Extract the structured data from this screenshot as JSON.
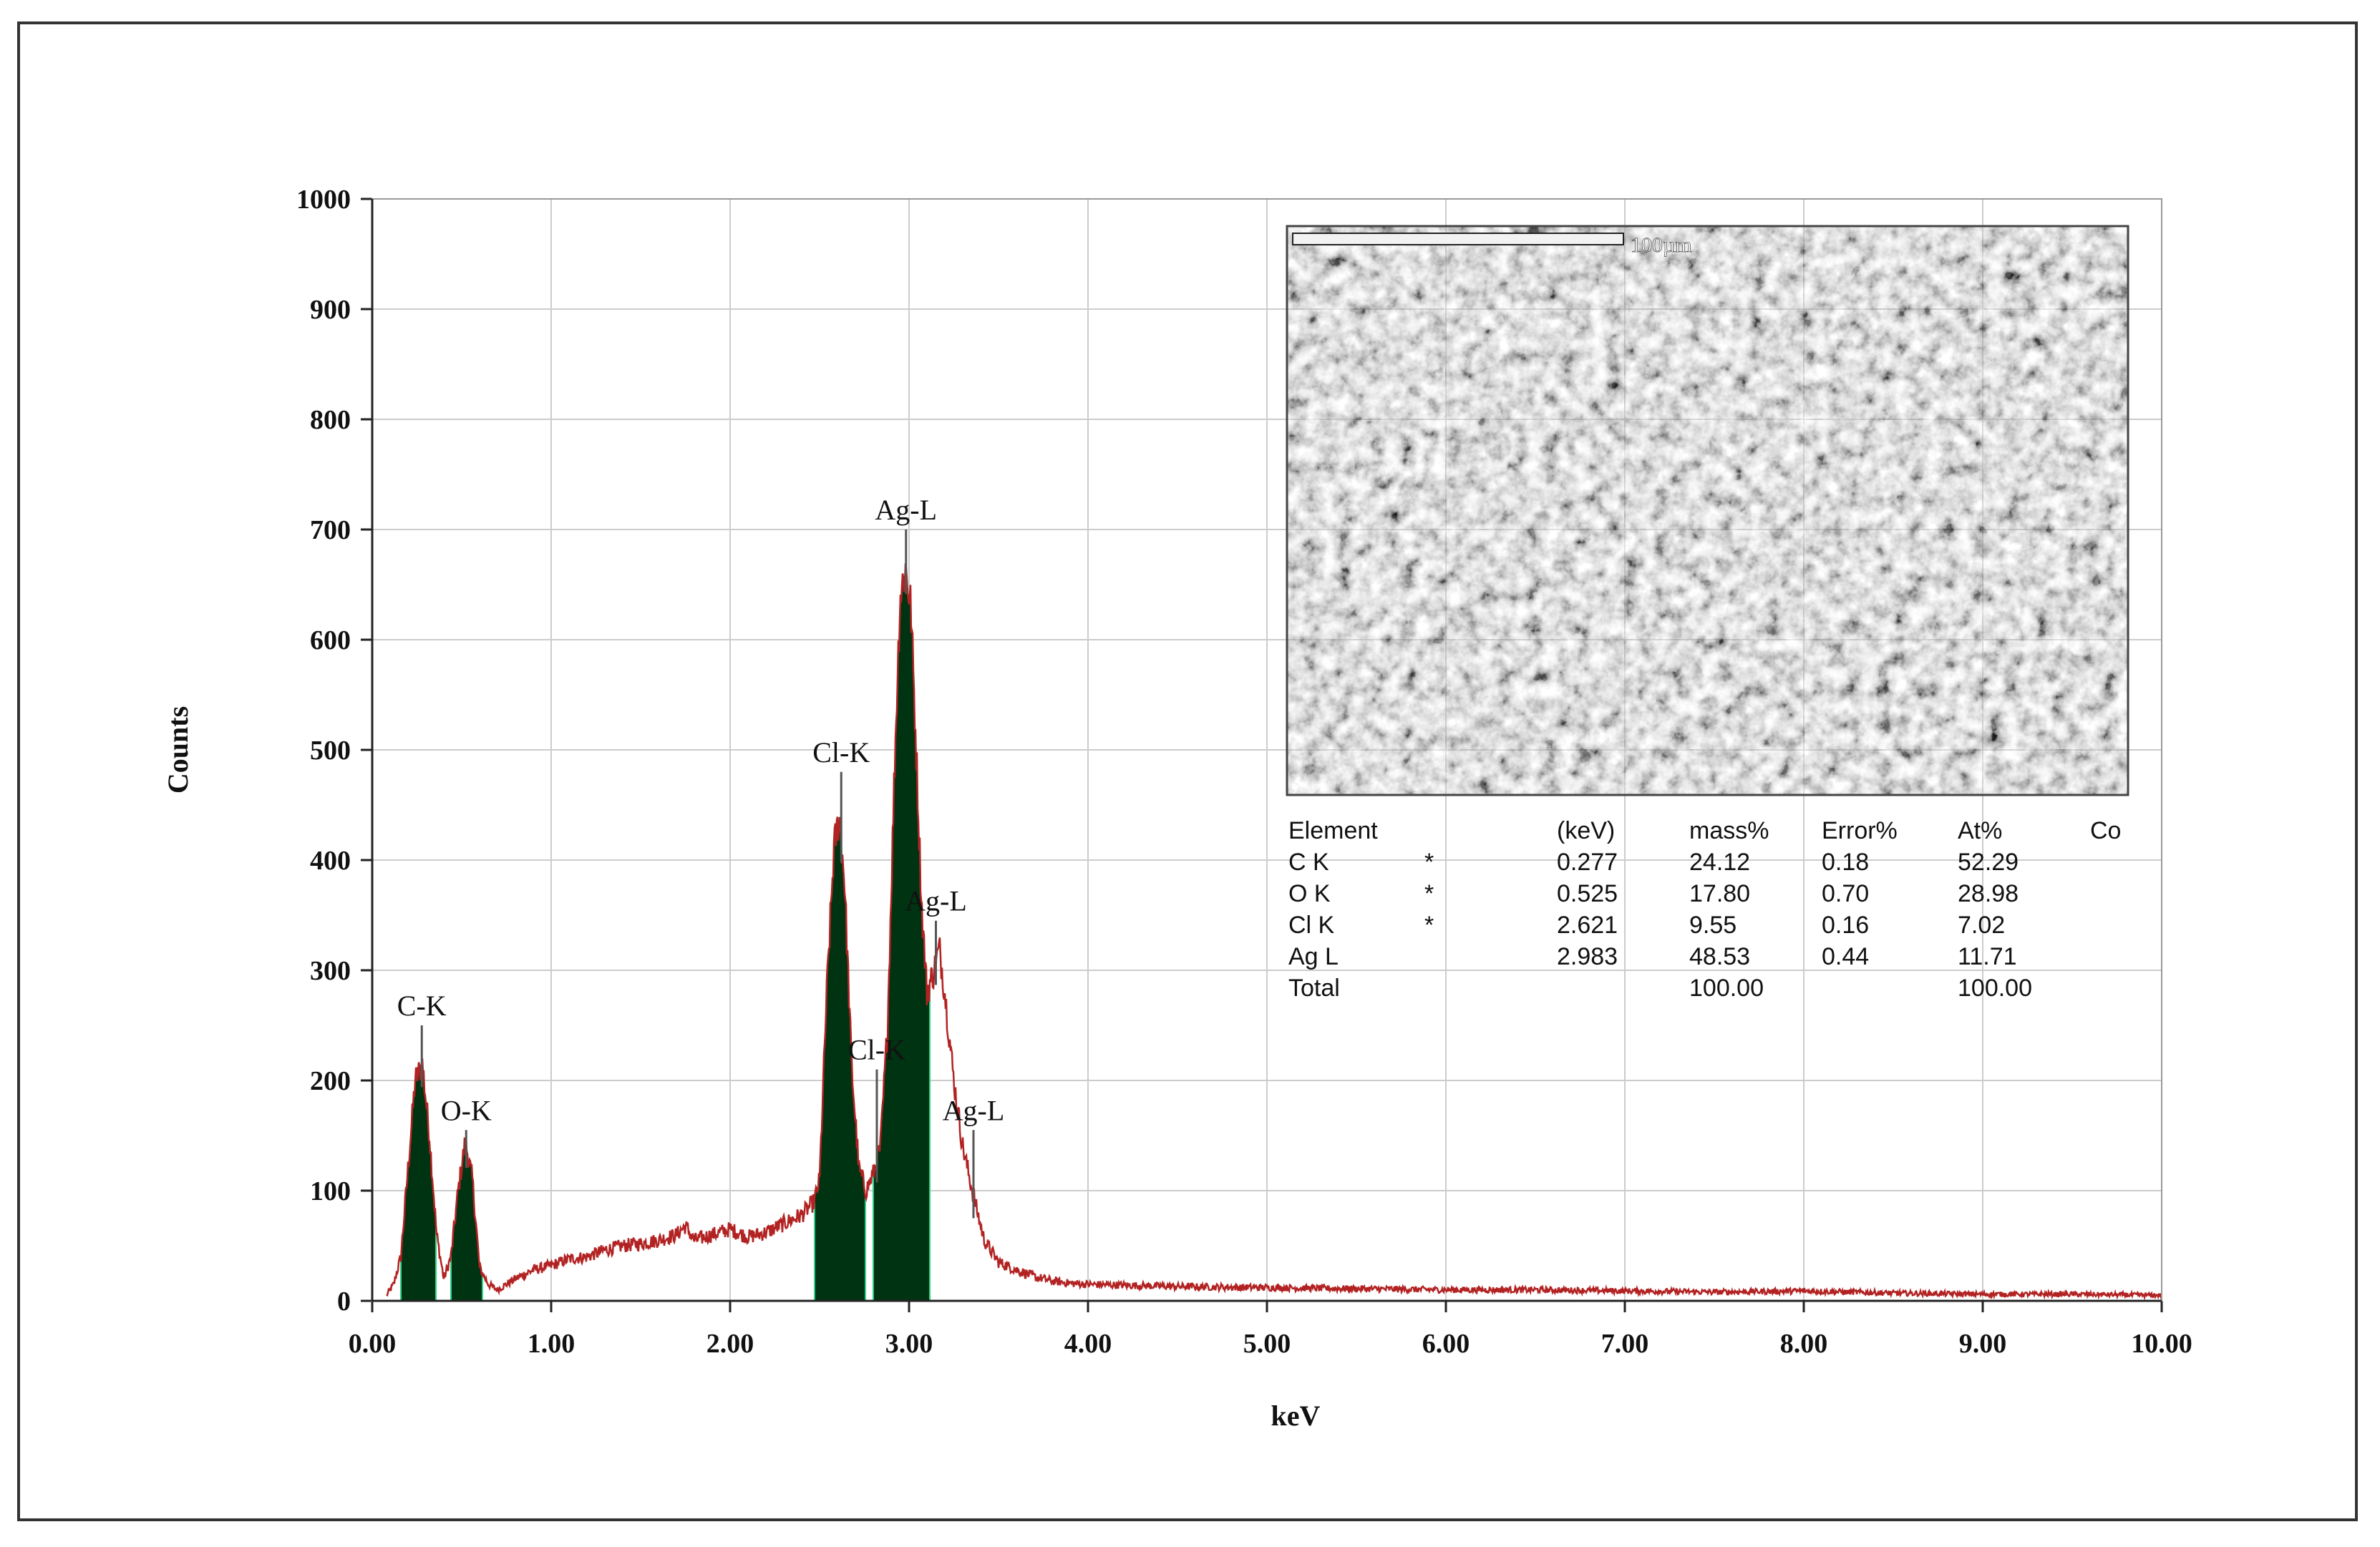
{
  "chart_data": {
    "type": "area",
    "title": "",
    "xlabel": "keV",
    "ylabel": "Counts",
    "xlim": [
      0,
      10
    ],
    "ylim": [
      0,
      1000
    ],
    "x_ticks": [
      "0.00",
      "1.00",
      "2.00",
      "3.00",
      "4.00",
      "5.00",
      "6.00",
      "7.00",
      "8.00",
      "9.00",
      "10.00"
    ],
    "y_ticks": [
      "0",
      "100",
      "200",
      "300",
      "400",
      "500",
      "600",
      "700",
      "800",
      "900",
      "1000"
    ],
    "grid": true,
    "colors": {
      "spectrum_line": "#b22222",
      "peak_fill": "#003311",
      "grid": "#cccccc"
    },
    "spectrum": {
      "x": [
        0.08,
        0.12,
        0.16,
        0.2,
        0.24,
        0.28,
        0.32,
        0.36,
        0.4,
        0.44,
        0.48,
        0.52,
        0.56,
        0.6,
        0.65,
        0.7,
        0.8,
        0.9,
        1.0,
        1.1,
        1.2,
        1.3,
        1.4,
        1.5,
        1.6,
        1.7,
        1.75,
        1.8,
        1.9,
        2.0,
        2.1,
        2.2,
        2.3,
        2.4,
        2.47,
        2.5,
        2.54,
        2.58,
        2.61,
        2.64,
        2.68,
        2.72,
        2.76,
        2.8,
        2.84,
        2.88,
        2.92,
        2.95,
        2.98,
        3.01,
        3.04,
        3.07,
        3.1,
        3.14,
        3.17,
        3.2,
        3.25,
        3.3,
        3.36,
        3.42,
        3.5,
        3.6,
        3.7,
        3.8,
        3.9,
        4.0,
        4.5,
        5.0,
        5.5,
        6.0,
        6.5,
        7.0,
        7.5,
        8.0,
        8.5,
        9.0,
        9.5,
        10.0
      ],
      "y": [
        5,
        15,
        40,
        120,
        200,
        215,
        150,
        60,
        20,
        40,
        100,
        145,
        110,
        30,
        15,
        10,
        20,
        28,
        32,
        38,
        40,
        46,
        50,
        52,
        55,
        60,
        68,
        55,
        60,
        65,
        58,
        62,
        70,
        78,
        90,
        110,
        280,
        410,
        440,
        380,
        210,
        120,
        100,
        115,
        140,
        250,
        490,
        640,
        665,
        630,
        500,
        360,
        280,
        300,
        320,
        280,
        200,
        140,
        95,
        55,
        35,
        28,
        22,
        18,
        16,
        15,
        13,
        12,
        11,
        10,
        10,
        9,
        8,
        9,
        7,
        6,
        6,
        5
      ]
    },
    "filled_peaks": [
      {
        "label": "C-K",
        "x_range": [
          0.16,
          0.36
        ]
      },
      {
        "label": "O-K",
        "x_range": [
          0.44,
          0.62
        ]
      },
      {
        "label": "Cl-K",
        "x_range": [
          2.47,
          2.76
        ]
      },
      {
        "label": "Ag-L",
        "x_range": [
          2.8,
          3.12
        ]
      }
    ],
    "annotations": [
      {
        "text": "C-K",
        "x": 0.277,
        "y": 250
      },
      {
        "text": "O-K",
        "x": 0.525,
        "y": 155
      },
      {
        "text": "Cl-K",
        "x": 2.621,
        "y": 480
      },
      {
        "text": "Ag-L",
        "x": 2.983,
        "y": 700
      },
      {
        "text": "Ag-L",
        "x": 3.15,
        "y": 345
      },
      {
        "text": "Cl-K",
        "x": 2.82,
        "y": 210
      },
      {
        "text": "Ag-L",
        "x": 3.36,
        "y": 155
      }
    ]
  },
  "inset": {
    "scale_bar_label": "100µm",
    "table": {
      "headers": [
        "Element",
        "",
        "(keV)",
        "mass%",
        "Error%",
        "At%",
        "Co"
      ],
      "rows": [
        [
          "C  K",
          "*",
          "0.277",
          "24.12",
          "0.18",
          "52.29",
          ""
        ],
        [
          "O  K",
          "*",
          "0.525",
          "17.80",
          "0.70",
          "28.98",
          ""
        ],
        [
          "Cl K",
          "*",
          "2.621",
          "9.55",
          "0.16",
          "7.02",
          ""
        ],
        [
          "Ag L",
          "",
          "2.983",
          "48.53",
          "0.44",
          "11.71",
          ""
        ],
        [
          "Total",
          "",
          "",
          "100.00",
          "",
          "100.00",
          ""
        ]
      ]
    }
  }
}
